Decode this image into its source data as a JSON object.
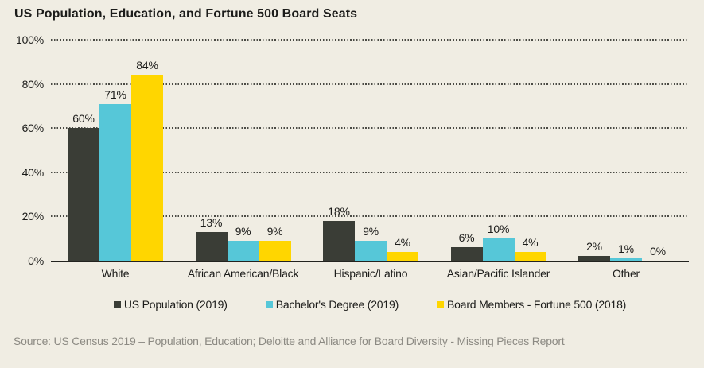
{
  "chart_data": {
    "type": "bar",
    "title": "US Population, Education, and Fortune 500 Board Seats",
    "categories": [
      "White",
      "African American/Black",
      "Hispanic/Latino",
      "Asian/Pacific Islander",
      "Other"
    ],
    "series": [
      {
        "name": "US Population (2019)",
        "color": "#3a3d36",
        "values": [
          60,
          13,
          18,
          6,
          2
        ]
      },
      {
        "name": "Bachelor's Degree (2019)",
        "color": "#56c7d8",
        "values": [
          71,
          9,
          9,
          10,
          1
        ]
      },
      {
        "name": "Board Members - Fortune 500 (2018)",
        "color": "#ffd600",
        "values": [
          84,
          9,
          4,
          4,
          0
        ]
      }
    ],
    "xlabel": "",
    "ylabel": "",
    "ylim": [
      0,
      100
    ],
    "yticks": [
      0,
      20,
      40,
      60,
      80,
      100
    ],
    "ytick_format": "percent",
    "value_label_format": "percent",
    "grid": "horizontal-dotted",
    "legend_position": "bottom"
  },
  "colors": {
    "background": "#f0ede3",
    "grid": "#4a4a44",
    "axis": "#23231f",
    "text": "#1c1c1a",
    "source_text": "#8c8a83"
  },
  "source": "Source: US Census 2019 – Population, Education; Deloitte and Alliance for Board Diversity - Missing Pieces Report"
}
